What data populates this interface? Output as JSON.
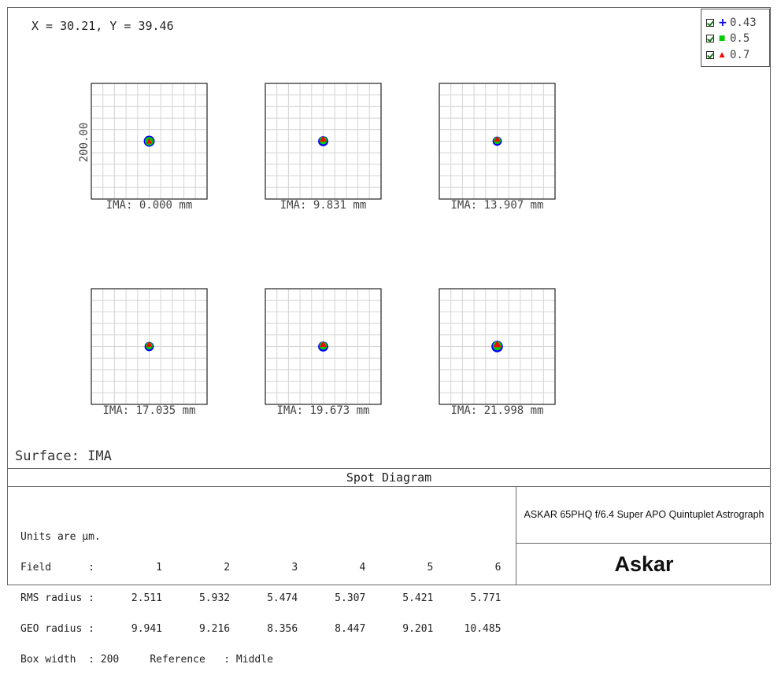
{
  "cursor_readout": "X = 30.21, Y = 39.46",
  "legend": [
    {
      "marker": "+",
      "label": "0.43",
      "color": "#0000ff"
    },
    {
      "marker": "■",
      "label": "0.5",
      "color": "#00cc00"
    },
    {
      "marker": "▲",
      "label": "0.7",
      "color": "#ff0000"
    }
  ],
  "scale_label": "200.00",
  "spots": [
    {
      "label": "IMA: 0.000 mm"
    },
    {
      "label": "IMA: 9.831 mm"
    },
    {
      "label": "IMA: 13.907 mm"
    },
    {
      "label": "IMA: 17.035 mm"
    },
    {
      "label": "IMA: 19.673 mm"
    },
    {
      "label": "IMA: 21.998 mm"
    }
  ],
  "surface_label": "Surface: IMA",
  "diagram_title": "Spot Diagram",
  "stats": {
    "line1": "Units are µm.",
    "line2": "Field      :          1          2          3          4          5          6",
    "line3": "RMS radius :      2.511      5.932      5.474      5.307      5.421      5.771",
    "line4": "GEO radius :      9.941      9.216      8.356      8.447      9.201     10.485",
    "line5": "Box width  : 200     Reference   : Middle"
  },
  "info": {
    "description": "ASKAR 65PHQ f/6.4 Super APO Quintuplet Astrograph",
    "logo": "Askar"
  },
  "chart_data": {
    "type": "scatter",
    "title": "Spot Diagram",
    "units": "µm",
    "box_width": 200,
    "reference": "Middle",
    "wavelengths": [
      "0.43",
      "0.5",
      "0.7"
    ],
    "fields": [
      1,
      2,
      3,
      4,
      5,
      6
    ],
    "field_ima_mm": [
      "0.000",
      "9.831",
      "13.907",
      "17.035",
      "19.673",
      "21.998"
    ],
    "rms_radius": [
      2.511,
      5.932,
      5.474,
      5.307,
      5.421,
      5.771
    ],
    "geo_radius": [
      9.941,
      9.216,
      8.356,
      8.447,
      9.201,
      10.485
    ],
    "colors": {
      "0.43": "#0000ff",
      "0.5": "#00cc00",
      "0.7": "#ff0000"
    }
  }
}
